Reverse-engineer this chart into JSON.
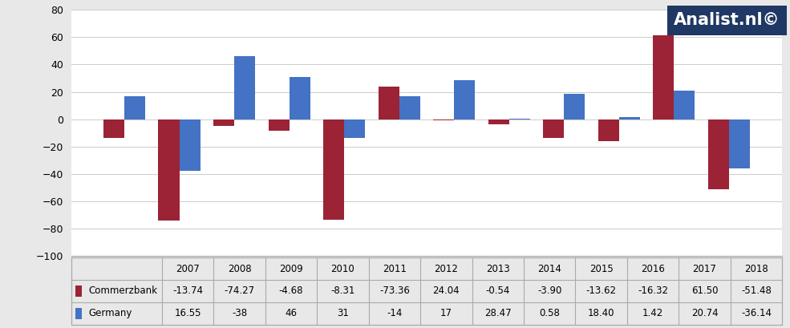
{
  "years": [
    "2007",
    "2008",
    "2009",
    "2010",
    "2011",
    "2012",
    "2013",
    "2014",
    "2015",
    "2016",
    "2017",
    "2018"
  ],
  "commerzbank": [
    -13.74,
    -74.27,
    -4.68,
    -8.31,
    -73.36,
    24.04,
    -0.54,
    -3.9,
    -13.62,
    -16.32,
    61.5,
    -51.48
  ],
  "germany": [
    16.55,
    -38.0,
    46.0,
    31.0,
    -14.0,
    17.0,
    28.47,
    0.58,
    18.4,
    1.42,
    20.74,
    -36.14
  ],
  "commerzbank_color": "#9B2335",
  "germany_color": "#4472C4",
  "ylim": [
    -100,
    80
  ],
  "yticks": [
    -100,
    -80,
    -60,
    -40,
    -20,
    0,
    20,
    40,
    60,
    80
  ],
  "background_color": "#E8E8E8",
  "plot_bg_color": "#FFFFFF",
  "legend_commerzbank": "Commerzbank",
  "legend_germany": "Germany",
  "watermark_text": "Analist.nl©",
  "watermark_bg": "#1F3864",
  "watermark_text_color": "#FFFFFF",
  "commerzbank_display": [
    "-13.74",
    "-74.27",
    "-4.68",
    "-8.31",
    "-73.36",
    "24.04",
    "-0.54",
    "-3.90",
    "-13.62",
    "-16.32",
    "61.50",
    "-51.48"
  ],
  "germany_display": [
    "16.55",
    "-38",
    "46",
    "31",
    "-14",
    "17",
    "28.47",
    "0.58",
    "18.40",
    "1.42",
    "20.74",
    "-36.14"
  ]
}
